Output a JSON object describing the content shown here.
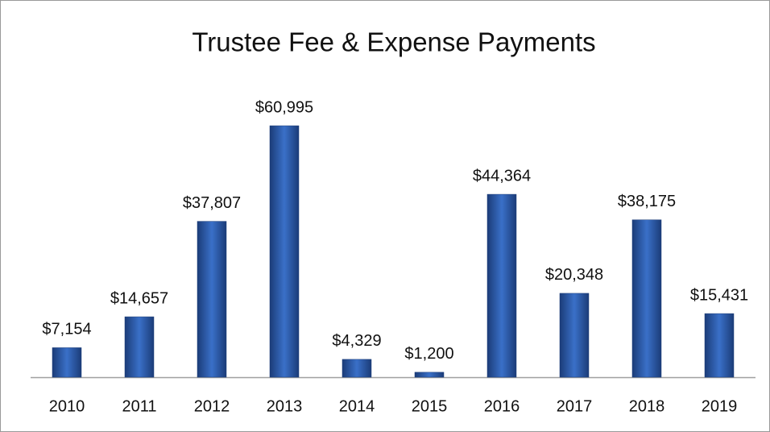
{
  "chart_data": {
    "type": "bar",
    "title": "Trustee Fee & Expense Payments",
    "categories": [
      "2010",
      "2011",
      "2012",
      "2013",
      "2014",
      "2015",
      "2016",
      "2017",
      "2018",
      "2019"
    ],
    "values": [
      7154,
      14657,
      37807,
      60995,
      4329,
      1200,
      44364,
      20348,
      38175,
      15431
    ],
    "value_labels": [
      "$7,154",
      "$14,657",
      "$37,807",
      "$60,995",
      "$4,329",
      "$1,200",
      "$44,364",
      "$20,348",
      "$38,175",
      "$15,431"
    ],
    "color": "#3a70c8"
  }
}
